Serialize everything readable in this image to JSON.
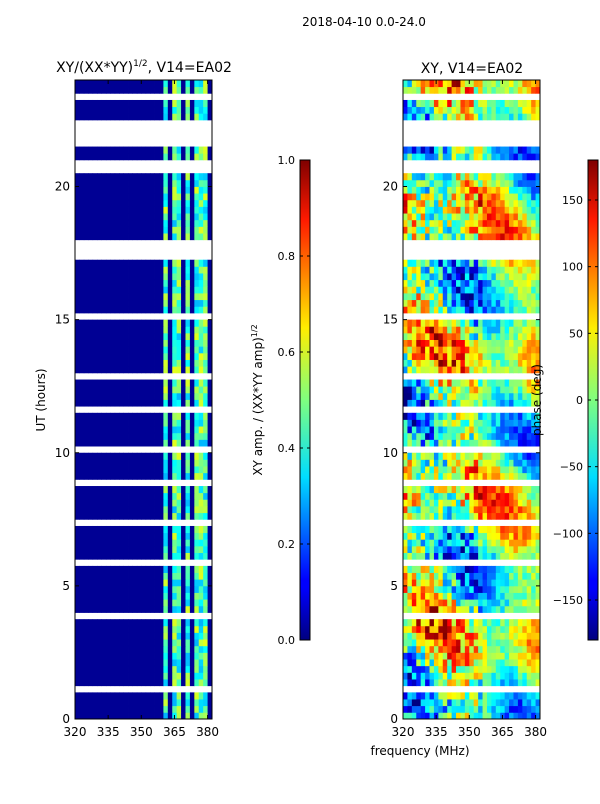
{
  "suptitle": "2018-04-10 0.0-24.0",
  "chart_data": [
    {
      "type": "heatmap",
      "title_main": "XY/(XX*YY)",
      "title_sup": "1/2",
      "title_rest": ", V14=EA02",
      "xlabel": "",
      "ylabel": "UT (hours)",
      "x_range": [
        320,
        382
      ],
      "y_range": [
        0,
        24
      ],
      "x_ticks": [
        "320",
        "335",
        "350",
        "365",
        "380"
      ],
      "x_tick_values": [
        320,
        335,
        350,
        365,
        380
      ],
      "y_ticks": [
        "0",
        "5",
        "10",
        "15",
        "20"
      ],
      "y_tick_values": [
        0,
        5,
        10,
        15,
        20
      ],
      "colorbar": {
        "label_main": "XY amp. / (XX*YY amp)",
        "label_sup": "1/2",
        "range": [
          0,
          1
        ],
        "ticks": [
          "0.0",
          "0.2",
          "0.4",
          "0.6",
          "0.8",
          "1.0"
        ],
        "tick_values": [
          0.0,
          0.2,
          0.4,
          0.6,
          0.8,
          1.0
        ],
        "colormap": "jet"
      },
      "background_value": 0.02,
      "bright_bands_mhz": [
        [
          360.5,
          362.5
        ],
        [
          364.5,
          367.5
        ],
        [
          369.5,
          372.5
        ],
        [
          375.0,
          377.5
        ],
        [
          378.0,
          380.5
        ]
      ],
      "band_value_range": [
        0.3,
        0.6
      ],
      "flagged_hours": [
        [
          21.4,
          22.4
        ],
        [
          20.6,
          20.9
        ],
        [
          17.6,
          17.9
        ],
        [
          17.2,
          17.4
        ],
        [
          12.8,
          13.0
        ],
        [
          10.0,
          10.2
        ],
        [
          5.8,
          6.0
        ],
        [
          3.7,
          3.9
        ],
        [
          1.0,
          1.2
        ],
        [
          23.2,
          23.4
        ],
        [
          22.9,
          23.0
        ],
        [
          18.4,
          18.5
        ],
        [
          15.1,
          15.2
        ],
        [
          14.0,
          14.1
        ],
        [
          11.6,
          11.7
        ],
        [
          8.8,
          8.9
        ],
        [
          7.3,
          7.4
        ],
        [
          2.2,
          2.3
        ]
      ]
    },
    {
      "type": "heatmap",
      "title": "XY, V14=EA02",
      "xlabel": "frequency (MHz)",
      "ylabel": "",
      "x_range": [
        320,
        382
      ],
      "y_range": [
        0,
        24
      ],
      "x_ticks": [
        "320",
        "335",
        "350",
        "365",
        "380"
      ],
      "x_tick_values": [
        320,
        335,
        350,
        365,
        380
      ],
      "y_ticks": [
        "0",
        "5",
        "10",
        "15",
        "20"
      ],
      "y_tick_values": [
        0,
        5,
        10,
        15,
        20
      ],
      "colorbar": {
        "label": "phase (deg)",
        "range": [
          -180,
          180
        ],
        "ticks": [
          "−150",
          "−100",
          "−50",
          "0",
          "50",
          "100",
          "150"
        ],
        "tick_values": [
          -150,
          -100,
          -50,
          0,
          50,
          100,
          150
        ],
        "colormap": "jet"
      },
      "flagged_hours": [
        [
          21.4,
          22.4
        ],
        [
          20.6,
          20.9
        ],
        [
          17.6,
          17.9
        ],
        [
          17.2,
          17.4
        ],
        [
          12.8,
          13.0
        ],
        [
          10.0,
          10.2
        ],
        [
          5.8,
          6.0
        ],
        [
          3.7,
          3.9
        ],
        [
          1.0,
          1.2
        ],
        [
          23.2,
          23.4
        ],
        [
          22.9,
          23.0
        ],
        [
          18.4,
          18.5
        ],
        [
          15.1,
          15.2
        ],
        [
          14.0,
          14.1
        ],
        [
          11.6,
          11.7
        ],
        [
          8.8,
          8.9
        ],
        [
          7.3,
          7.4
        ],
        [
          2.2,
          2.3
        ]
      ]
    }
  ]
}
